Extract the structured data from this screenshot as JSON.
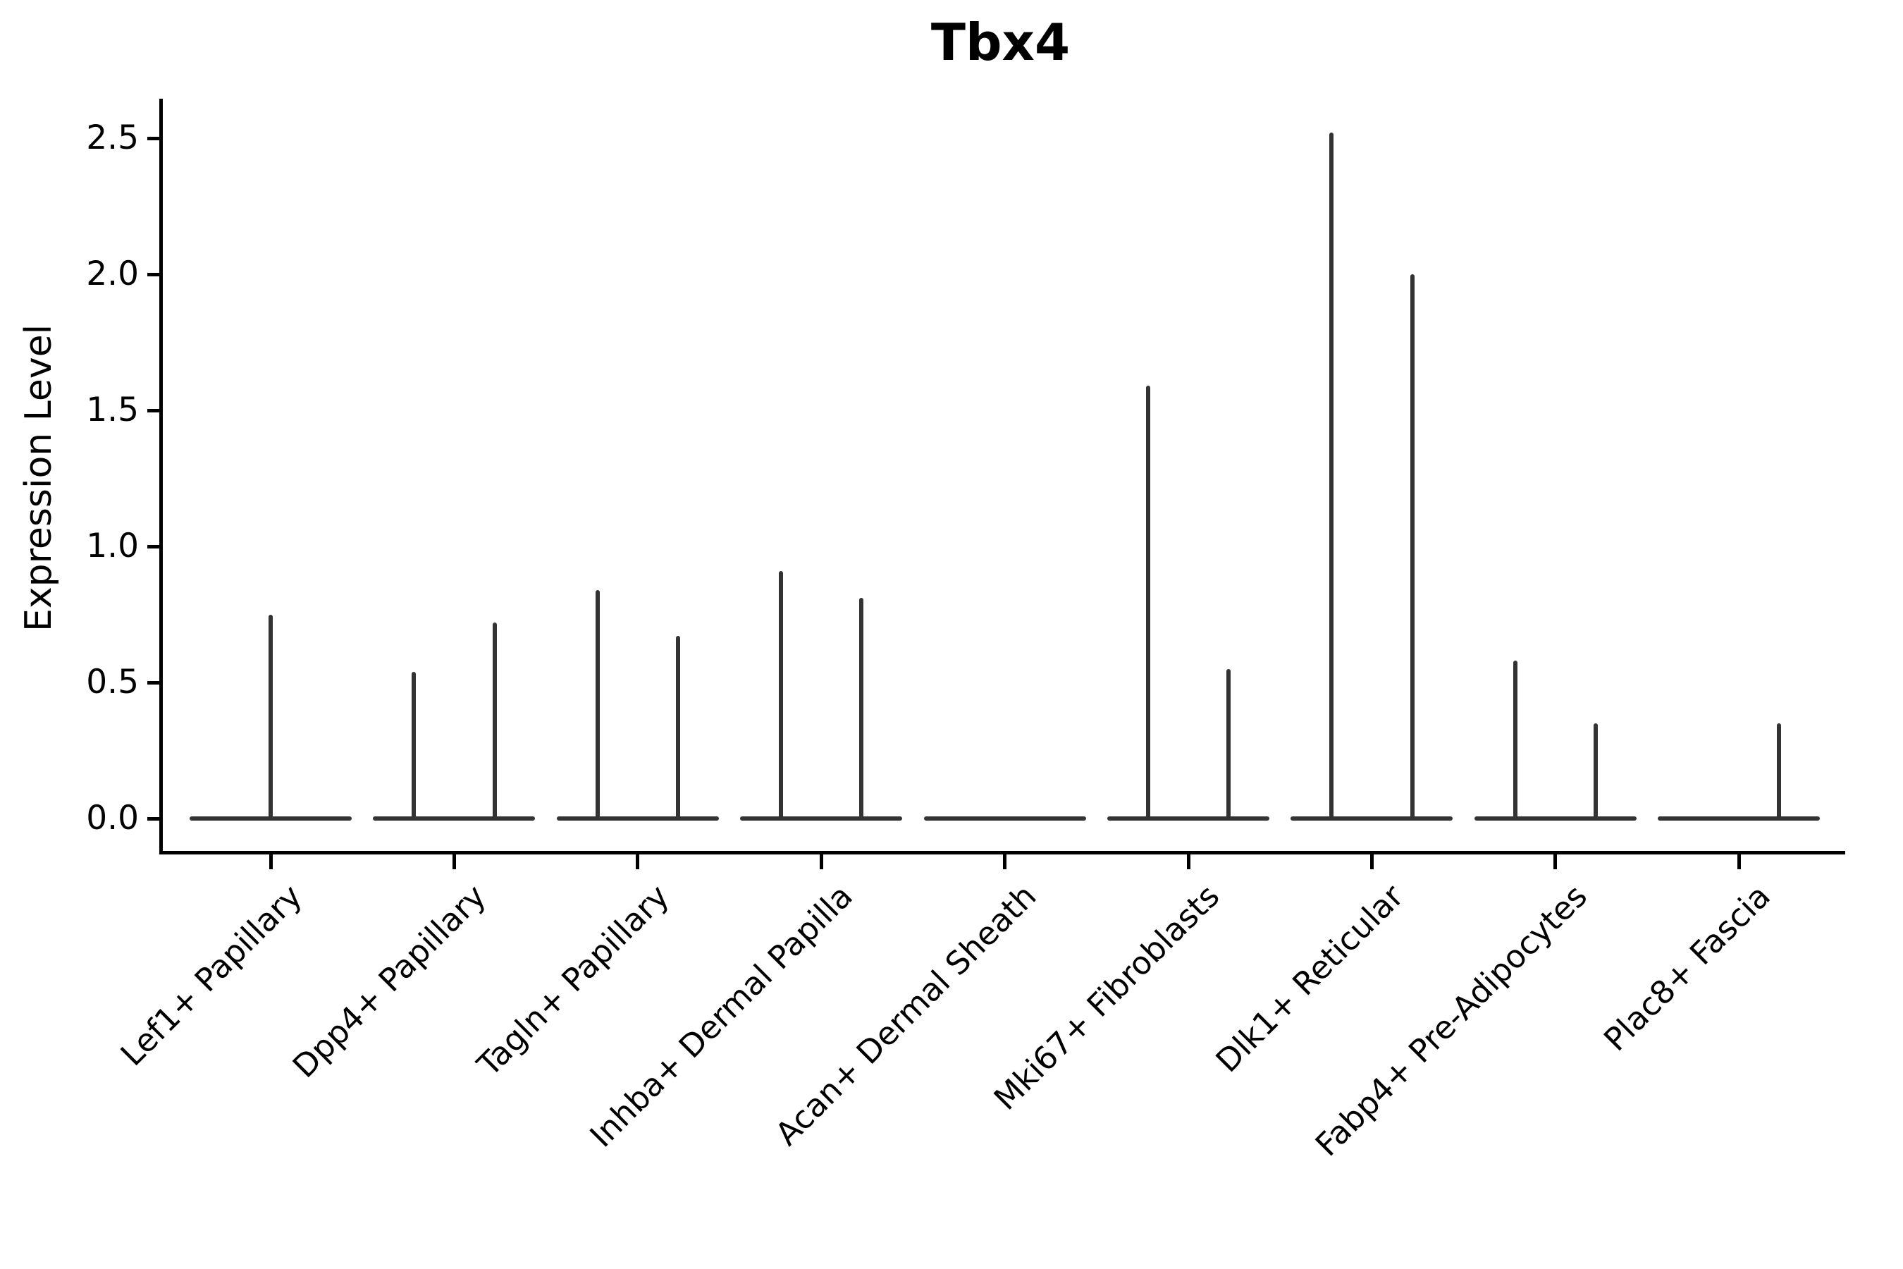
{
  "chart_data": {
    "type": "violin",
    "title": "Tbx4",
    "xlabel": "",
    "ylabel": "Expression Level",
    "yticks": [
      "0.0",
      "0.5",
      "1.0",
      "1.5",
      "2.0",
      "2.5"
    ],
    "ytick_values": [
      0.0,
      0.5,
      1.0,
      1.5,
      2.0,
      2.5
    ],
    "ylim": [
      -0.11,
      2.65
    ],
    "grid": false,
    "legend": "none",
    "categories": [
      "Lef1+ Papillary",
      "Dpp4+ Papillary",
      "Tagln+ Papillary",
      "Inhba+ Dermal Papilla",
      "Acan+ Dermal Sheath",
      "Mki67+ Fibroblasts",
      "Dlk1+ Reticular",
      "Fabp4+ Pre-Adipocytes",
      "Plac8+ Fascia"
    ],
    "description": "Violin plot of Tbx4 expression per fibroblast cluster; each violin collapses to a flat line at 0 with thin vertical spikes reaching the maximum expression of the rare expressing cells.",
    "violins": [
      {
        "category": "Lef1+ Papillary",
        "spikes": [
          {
            "offset_frac": 0.0,
            "max": 0.75
          }
        ]
      },
      {
        "category": "Dpp4+ Papillary",
        "spikes": [
          {
            "offset_frac": -0.22,
            "max": 0.54
          },
          {
            "offset_frac": 0.22,
            "max": 0.72
          }
        ]
      },
      {
        "category": "Tagln+ Papillary",
        "spikes": [
          {
            "offset_frac": -0.22,
            "max": 0.84
          },
          {
            "offset_frac": 0.22,
            "max": 0.67
          }
        ]
      },
      {
        "category": "Inhba+ Dermal Papilla",
        "spikes": [
          {
            "offset_frac": -0.22,
            "max": 0.91
          },
          {
            "offset_frac": 0.22,
            "max": 0.81
          }
        ]
      },
      {
        "category": "Acan+ Dermal Sheath",
        "spikes": []
      },
      {
        "category": "Mki67+ Fibroblasts",
        "spikes": [
          {
            "offset_frac": -0.22,
            "max": 1.59
          },
          {
            "offset_frac": 0.22,
            "max": 0.55
          }
        ]
      },
      {
        "category": "Dlk1+ Reticular",
        "spikes": [
          {
            "offset_frac": -0.22,
            "max": 2.52
          },
          {
            "offset_frac": 0.22,
            "max": 2.0
          }
        ]
      },
      {
        "category": "Fabp4+ Pre-Adipocytes",
        "spikes": [
          {
            "offset_frac": -0.22,
            "max": 0.58
          },
          {
            "offset_frac": 0.22,
            "max": 0.35
          }
        ]
      },
      {
        "category": "Plac8+ Fascia",
        "spikes": [
          {
            "offset_frac": 0.22,
            "max": 0.35
          }
        ]
      }
    ],
    "colors": {
      "violin_line": "#333333",
      "axis": "#000000",
      "text": "#000000",
      "background": "#ffffff"
    }
  }
}
